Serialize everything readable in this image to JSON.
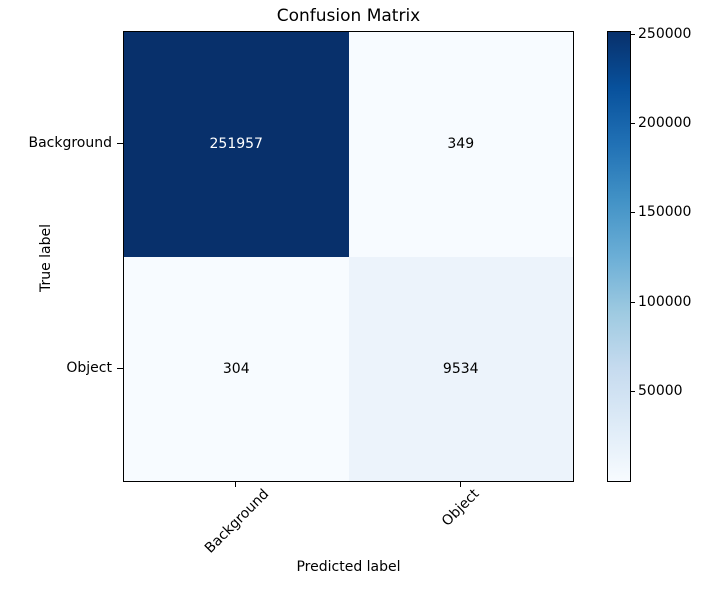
{
  "figure": {
    "background": "#ffffff",
    "text_color": "#000000"
  },
  "chart_data": {
    "type": "heatmap",
    "title": "Confusion Matrix",
    "xlabel": "Predicted label",
    "ylabel": "True label",
    "x_ticklabels": [
      "Background",
      "Object"
    ],
    "y_ticklabels": [
      "Background",
      "Object"
    ],
    "matrix": [
      [
        251957,
        349
      ],
      [
        304,
        9534
      ]
    ],
    "vmin": 304,
    "vmax": 251957,
    "colormap": "Blues",
    "grid": false,
    "legend": false,
    "x_ticklabel_rotation_deg": 45,
    "cell_colors": [
      [
        "#08306b",
        "#f7fbff"
      ],
      [
        "#f7fbff",
        "#ecf3fb"
      ]
    ],
    "cell_text_colors": [
      [
        "#ffffff",
        "#000000"
      ],
      [
        "#000000",
        "#000000"
      ]
    ],
    "colorbar": {
      "position": "right",
      "tick_values": [
        50000,
        100000,
        150000,
        200000,
        250000
      ],
      "tick_labels": [
        "50000",
        "100000",
        "150000",
        "200000",
        "250000"
      ],
      "gradient_stops_top_to_bottom": [
        "#08306b",
        "#08519c",
        "#2171b5",
        "#4292c6",
        "#6baed6",
        "#9ecae1",
        "#c6dbef",
        "#deebf7",
        "#f7fbff"
      ]
    }
  }
}
